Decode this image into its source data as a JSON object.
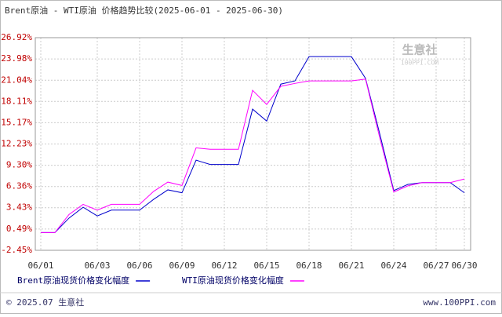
{
  "chart_data": {
    "type": "line",
    "title": "Brent原油 - WTI原油 价格趋势比较(2025-06-01 - 2025-06-30)",
    "categories": [
      "06/01",
      null,
      null,
      null,
      "06/03",
      null,
      null,
      "06/06",
      null,
      null,
      "06/09",
      null,
      null,
      "06/12",
      null,
      null,
      "06/15",
      null,
      null,
      "06/18",
      null,
      null,
      "06/21",
      null,
      null,
      "06/24",
      null,
      null,
      "06/27",
      null,
      "06/30"
    ],
    "series": [
      {
        "name": "Brent原油现货价格变化幅度",
        "color": "#0000cc",
        "values": [
          0,
          0,
          2.0,
          3.5,
          2.3,
          3.1,
          3.1,
          3.1,
          4.6,
          5.9,
          5.5,
          10.0,
          9.4,
          9.4,
          9.4,
          17.05,
          15.4,
          20.5,
          20.95,
          24.3,
          24.3,
          24.3,
          24.3,
          21.3,
          13.7,
          5.8,
          6.65,
          6.9,
          6.9,
          6.9,
          5.5
        ]
      },
      {
        "name": "WTI原油现货价格变化幅度",
        "color": "#ff00ff",
        "values": [
          0,
          0,
          2.5,
          3.9,
          3.1,
          3.9,
          3.9,
          3.9,
          5.7,
          6.97,
          6.5,
          11.7,
          11.5,
          11.5,
          11.5,
          19.65,
          17.7,
          20.2,
          20.6,
          20.95,
          20.95,
          20.95,
          20.95,
          21.2,
          13.15,
          5.6,
          6.45,
          6.9,
          6.9,
          6.9,
          7.4
        ]
      }
    ],
    "ylim": [
      -2.45,
      26.92
    ],
    "yticks": [
      {
        "value": -2.45,
        "label": "-2.45%"
      },
      {
        "value": 0.49,
        "label": "0.49%"
      },
      {
        "value": 3.43,
        "label": "3.43%"
      },
      {
        "value": 6.36,
        "label": "6.36%"
      },
      {
        "value": 9.3,
        "label": "9.30%"
      },
      {
        "value": 12.23,
        "label": "12.23%"
      },
      {
        "value": 15.17,
        "label": "15.17%"
      },
      {
        "value": 18.11,
        "label": "18.11%"
      },
      {
        "value": 21.04,
        "label": "21.04%"
      },
      {
        "value": 23.98,
        "label": "23.98%"
      },
      {
        "value": 26.92,
        "label": "26.92%"
      }
    ],
    "grid": true,
    "watermark": [
      "生意社",
      "100PPI.COM"
    ],
    "footer_left": "© 2025.07 生意社",
    "footer_right": "www.100PPI.com"
  }
}
